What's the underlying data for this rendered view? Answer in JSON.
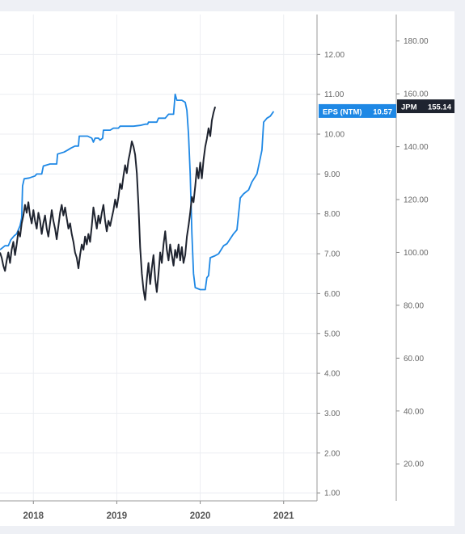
{
  "chart_data": {
    "type": "line",
    "title": "",
    "xlabel": "",
    "x_ticks": [
      "2018",
      "2019",
      "2020",
      "2021"
    ],
    "x_range": [
      2017.6,
      2021.4
    ],
    "axes": {
      "left": {
        "name": "EPS (NTM)",
        "ticks": [
          "1.00",
          "2.00",
          "3.00",
          "4.00",
          "5.00",
          "6.00",
          "7.00",
          "8.00",
          "9.00",
          "10.00",
          "11.00",
          "12.00"
        ],
        "ylim": [
          0.8,
          13.0
        ]
      },
      "right": {
        "name": "JPM",
        "ticks": [
          "20.00",
          "40.00",
          "60.00",
          "80.00",
          "100.00",
          "120.00",
          "140.00",
          "160.00",
          "180.00"
        ],
        "ylim": [
          6.0,
          190.0
        ]
      }
    },
    "series": [
      {
        "name": "EPS (NTM)",
        "axis": "left",
        "color": "#1e88e5",
        "last_value": "10.57",
        "points": [
          [
            2017.6,
            7.1
          ],
          [
            2017.63,
            7.15
          ],
          [
            2017.66,
            7.2
          ],
          [
            2017.7,
            7.2
          ],
          [
            2017.73,
            7.35
          ],
          [
            2017.77,
            7.45
          ],
          [
            2017.8,
            7.5
          ],
          [
            2017.84,
            7.7
          ],
          [
            2017.86,
            7.9
          ],
          [
            2017.87,
            8.7
          ],
          [
            2017.89,
            8.88
          ],
          [
            2017.95,
            8.9
          ],
          [
            2018.02,
            8.95
          ],
          [
            2018.04,
            9.0
          ],
          [
            2018.1,
            9.0
          ],
          [
            2018.12,
            9.2
          ],
          [
            2018.2,
            9.25
          ],
          [
            2018.28,
            9.25
          ],
          [
            2018.29,
            9.5
          ],
          [
            2018.37,
            9.55
          ],
          [
            2018.41,
            9.6
          ],
          [
            2018.45,
            9.65
          ],
          [
            2018.5,
            9.7
          ],
          [
            2018.54,
            9.7
          ],
          [
            2018.55,
            9.95
          ],
          [
            2018.65,
            9.95
          ],
          [
            2018.7,
            9.9
          ],
          [
            2018.72,
            9.8
          ],
          [
            2018.74,
            9.9
          ],
          [
            2018.78,
            9.9
          ],
          [
            2018.8,
            9.85
          ],
          [
            2018.83,
            9.9
          ],
          [
            2018.84,
            10.1
          ],
          [
            2018.92,
            10.1
          ],
          [
            2018.96,
            10.15
          ],
          [
            2019.02,
            10.15
          ],
          [
            2019.04,
            10.2
          ],
          [
            2019.2,
            10.2
          ],
          [
            2019.28,
            10.22
          ],
          [
            2019.34,
            10.25
          ],
          [
            2019.37,
            10.25
          ],
          [
            2019.38,
            10.3
          ],
          [
            2019.48,
            10.3
          ],
          [
            2019.5,
            10.4
          ],
          [
            2019.58,
            10.4
          ],
          [
            2019.62,
            10.5
          ],
          [
            2019.68,
            10.5
          ],
          [
            2019.7,
            11.0
          ],
          [
            2019.72,
            10.85
          ],
          [
            2019.78,
            10.85
          ],
          [
            2019.82,
            10.8
          ],
          [
            2019.84,
            10.6
          ],
          [
            2019.86,
            10.0
          ],
          [
            2019.88,
            9.0
          ],
          [
            2019.9,
            7.5
          ],
          [
            2019.92,
            6.5
          ],
          [
            2019.94,
            6.15
          ],
          [
            2020.0,
            6.1
          ],
          [
            2020.06,
            6.1
          ],
          [
            2020.08,
            6.4
          ],
          [
            2020.1,
            6.45
          ],
          [
            2020.12,
            6.9
          ],
          [
            2020.18,
            6.95
          ],
          [
            2020.22,
            7.0
          ],
          [
            2020.28,
            7.2
          ],
          [
            2020.32,
            7.25
          ],
          [
            2020.4,
            7.5
          ],
          [
            2020.44,
            7.6
          ],
          [
            2020.48,
            8.4
          ],
          [
            2020.52,
            8.5
          ],
          [
            2020.58,
            8.6
          ],
          [
            2020.62,
            8.8
          ],
          [
            2020.68,
            9.0
          ],
          [
            2020.72,
            9.4
          ],
          [
            2020.74,
            9.6
          ],
          [
            2020.76,
            10.3
          ],
          [
            2020.8,
            10.4
          ],
          [
            2020.84,
            10.45
          ],
          [
            2020.88,
            10.57
          ]
        ]
      },
      {
        "name": "JPM",
        "axis": "right",
        "color": "#1f2430",
        "last_value": "155.14",
        "points": [
          [
            2017.6,
            100
          ],
          [
            2017.62,
            98
          ],
          [
            2017.64,
            95
          ],
          [
            2017.66,
            93
          ],
          [
            2017.68,
            97
          ],
          [
            2017.7,
            100
          ],
          [
            2017.72,
            96
          ],
          [
            2017.74,
            101
          ],
          [
            2017.76,
            104
          ],
          [
            2017.78,
            99
          ],
          [
            2017.8,
            103
          ],
          [
            2017.82,
            108
          ],
          [
            2017.84,
            106
          ],
          [
            2017.86,
            111
          ],
          [
            2017.88,
            114
          ],
          [
            2017.9,
            118
          ],
          [
            2017.92,
            115
          ],
          [
            2017.94,
            119
          ],
          [
            2017.96,
            114
          ],
          [
            2017.98,
            111
          ],
          [
            2018.0,
            116
          ],
          [
            2018.02,
            112
          ],
          [
            2018.04,
            109
          ],
          [
            2018.06,
            115
          ],
          [
            2018.08,
            112
          ],
          [
            2018.1,
            107
          ],
          [
            2018.12,
            111
          ],
          [
            2018.14,
            114
          ],
          [
            2018.16,
            109
          ],
          [
            2018.18,
            106
          ],
          [
            2018.2,
            111
          ],
          [
            2018.22,
            116
          ],
          [
            2018.24,
            112
          ],
          [
            2018.26,
            109
          ],
          [
            2018.28,
            105
          ],
          [
            2018.3,
            110
          ],
          [
            2018.32,
            115
          ],
          [
            2018.34,
            118
          ],
          [
            2018.36,
            114
          ],
          [
            2018.38,
            117
          ],
          [
            2018.4,
            113
          ],
          [
            2018.42,
            109
          ],
          [
            2018.44,
            111
          ],
          [
            2018.46,
            107
          ],
          [
            2018.48,
            104
          ],
          [
            2018.5,
            100
          ],
          [
            2018.52,
            98
          ],
          [
            2018.54,
            94
          ],
          [
            2018.56,
            99
          ],
          [
            2018.58,
            103
          ],
          [
            2018.6,
            101
          ],
          [
            2018.62,
            106
          ],
          [
            2018.64,
            103
          ],
          [
            2018.66,
            107
          ],
          [
            2018.68,
            104
          ],
          [
            2018.7,
            110
          ],
          [
            2018.72,
            117
          ],
          [
            2018.74,
            113
          ],
          [
            2018.76,
            109
          ],
          [
            2018.78,
            114
          ],
          [
            2018.8,
            111
          ],
          [
            2018.82,
            115
          ],
          [
            2018.84,
            118
          ],
          [
            2018.86,
            112
          ],
          [
            2018.88,
            108
          ],
          [
            2018.9,
            112
          ],
          [
            2018.92,
            110
          ],
          [
            2018.94,
            113
          ],
          [
            2018.96,
            116
          ],
          [
            2018.98,
            120
          ],
          [
            2019.0,
            117
          ],
          [
            2019.02,
            121
          ],
          [
            2019.04,
            126
          ],
          [
            2019.06,
            124
          ],
          [
            2019.08,
            129
          ],
          [
            2019.1,
            133
          ],
          [
            2019.12,
            130
          ],
          [
            2019.14,
            135
          ],
          [
            2019.16,
            138
          ],
          [
            2019.18,
            142
          ],
          [
            2019.2,
            140
          ],
          [
            2019.22,
            137
          ],
          [
            2019.24,
            130
          ],
          [
            2019.26,
            118
          ],
          [
            2019.28,
            102
          ],
          [
            2019.3,
            92
          ],
          [
            2019.32,
            86
          ],
          [
            2019.34,
            82
          ],
          [
            2019.36,
            90
          ],
          [
            2019.38,
            96
          ],
          [
            2019.4,
            88
          ],
          [
            2019.42,
            94
          ],
          [
            2019.44,
            99
          ],
          [
            2019.46,
            90
          ],
          [
            2019.48,
            85
          ],
          [
            2019.5,
            92
          ],
          [
            2019.52,
            100
          ],
          [
            2019.54,
            96
          ],
          [
            2019.56,
            103
          ],
          [
            2019.58,
            108
          ],
          [
            2019.6,
            101
          ],
          [
            2019.62,
            97
          ],
          [
            2019.64,
            103
          ],
          [
            2019.66,
            99
          ],
          [
            2019.68,
            95
          ],
          [
            2019.7,
            101
          ],
          [
            2019.72,
            98
          ],
          [
            2019.74,
            103
          ],
          [
            2019.76,
            97
          ],
          [
            2019.78,
            102
          ],
          [
            2019.8,
            96
          ],
          [
            2019.82,
            99
          ],
          [
            2019.84,
            106
          ],
          [
            2019.86,
            110
          ],
          [
            2019.88,
            115
          ],
          [
            2019.9,
            121
          ],
          [
            2019.92,
            119
          ],
          [
            2019.94,
            125
          ],
          [
            2019.96,
            132
          ],
          [
            2019.98,
            128
          ],
          [
            2020.0,
            134
          ],
          [
            2020.02,
            128
          ],
          [
            2020.04,
            135
          ],
          [
            2020.06,
            140
          ],
          [
            2020.08,
            143
          ],
          [
            2020.1,
            147
          ],
          [
            2020.12,
            144
          ],
          [
            2020.14,
            150
          ],
          [
            2020.16,
            153
          ],
          [
            2020.18,
            155.14
          ]
        ]
      }
    ]
  }
}
